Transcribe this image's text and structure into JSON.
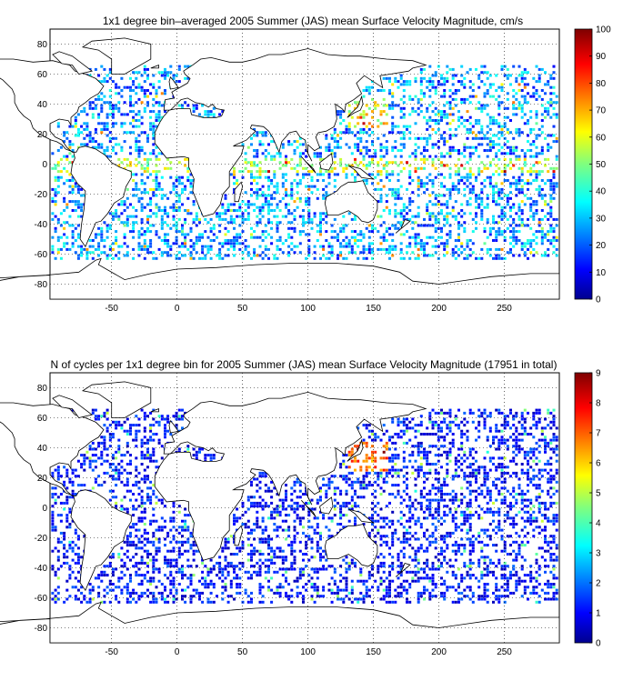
{
  "panels": [
    {
      "title": "1x1 degree bin–averaged 2005 Summer (JAS) mean Surface Velocity Magnitude, cm/s",
      "colorbar_ticks": [
        "0",
        "10",
        "20",
        "30",
        "40",
        "50",
        "60",
        "70",
        "80",
        "90",
        "100"
      ]
    },
    {
      "title": "N of cycles per 1x1 degree bin for 2005 Summer (JAS) mean Surface Velocity Magnitude (17951 in total)",
      "colorbar_ticks": [
        "0",
        "1",
        "2",
        "3",
        "4",
        "5",
        "6",
        "7",
        "8",
        "9"
      ]
    }
  ],
  "chart_data": [
    {
      "type": "heatmap",
      "title": "1x1 degree bin–averaged 2005 Summer (JAS) mean Surface Velocity Magnitude, cm/s",
      "xlim": [
        -97,
        292
      ],
      "ylim": [
        -90,
        90
      ],
      "x_ticks": [
        -50,
        0,
        50,
        100,
        150,
        200,
        250
      ],
      "y_ticks": [
        -80,
        -60,
        -40,
        -20,
        0,
        20,
        40,
        60,
        80
      ],
      "colorbar": {
        "min": 0,
        "max": 100,
        "ticks": [
          0,
          10,
          20,
          30,
          40,
          50,
          60,
          70,
          80,
          90,
          100
        ],
        "colormap": "jet"
      },
      "grid": true
    },
    {
      "type": "heatmap",
      "title": "N of cycles per 1x1 degree bin for 2005 Summer (JAS) mean Surface Velocity Magnitude (17951 in total)",
      "xlim": [
        -97,
        292
      ],
      "ylim": [
        -90,
        90
      ],
      "x_ticks": [
        -50,
        0,
        50,
        100,
        150,
        200,
        250
      ],
      "y_ticks": [
        -80,
        -60,
        -40,
        -20,
        0,
        20,
        40,
        60,
        80
      ],
      "colorbar": {
        "min": 0,
        "max": 9,
        "ticks": [
          0,
          1,
          2,
          3,
          4,
          5,
          6,
          7,
          8,
          9
        ],
        "colormap": "jet"
      },
      "grid": true
    }
  ]
}
